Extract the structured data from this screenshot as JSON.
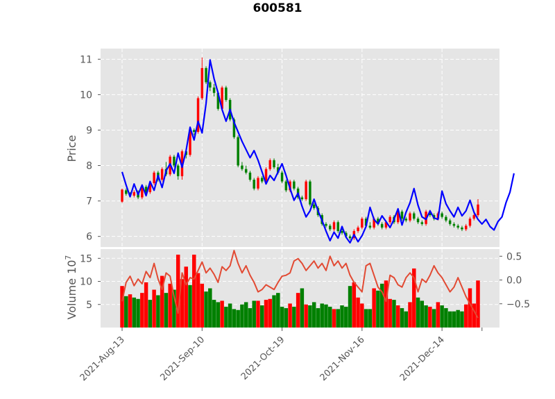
{
  "chart_data": [
    {
      "type": "candlestick",
      "title": "600581",
      "ylabel": "Price",
      "ylim": [
        5.7,
        11.3
      ],
      "yticks": [
        6,
        7,
        8,
        9,
        10,
        11
      ],
      "ytick_labels": [
        "6",
        "7",
        "8",
        "9",
        "10",
        "11"
      ],
      "grid": true,
      "x_dates": [
        "2021-Aug-13",
        "2021-Sep-10",
        "2021-Oct-19",
        "2021-Nov-16",
        "2021-Dec-14"
      ],
      "x_date_index": [
        0,
        20,
        40,
        60,
        80
      ],
      "up_color": "#ff0000",
      "down_color": "#008000",
      "ohlc": [
        [
          6.98,
          7.35,
          6.95,
          7.32
        ],
        [
          7.3,
          7.35,
          7.15,
          7.2
        ],
        [
          7.2,
          7.25,
          7.1,
          7.15
        ],
        [
          7.15,
          7.3,
          7.1,
          7.25
        ],
        [
          7.25,
          7.3,
          7.05,
          7.1
        ],
        [
          7.1,
          7.45,
          7.05,
          7.4
        ],
        [
          7.4,
          7.45,
          7.2,
          7.25
        ],
        [
          7.25,
          7.55,
          7.2,
          7.5
        ],
        [
          7.5,
          7.85,
          7.45,
          7.8
        ],
        [
          7.8,
          7.85,
          7.55,
          7.6
        ],
        [
          7.6,
          7.95,
          7.55,
          7.9
        ],
        [
          7.9,
          8.1,
          7.7,
          7.75
        ],
        [
          7.75,
          8.3,
          7.7,
          8.25
        ],
        [
          8.25,
          8.3,
          7.95,
          8.0
        ],
        [
          8.0,
          8.05,
          7.6,
          7.7
        ],
        [
          7.7,
          8.45,
          7.6,
          8.4
        ],
        [
          8.4,
          8.45,
          8.2,
          8.3
        ],
        [
          8.3,
          9.1,
          8.25,
          9.0
        ],
        [
          9.0,
          9.05,
          8.85,
          8.95
        ],
        [
          8.95,
          9.95,
          8.9,
          9.9
        ],
        [
          9.9,
          11.05,
          9.85,
          10.75
        ],
        [
          10.75,
          10.8,
          10.3,
          10.35
        ],
        [
          10.35,
          10.4,
          10.1,
          10.2
        ],
        [
          10.2,
          10.3,
          9.95,
          10.05
        ],
        [
          10.05,
          10.1,
          9.55,
          9.6
        ],
        [
          9.6,
          10.25,
          9.55,
          10.2
        ],
        [
          10.2,
          10.25,
          9.8,
          9.85
        ],
        [
          9.85,
          9.9,
          9.25,
          9.3
        ],
        [
          9.3,
          9.35,
          8.75,
          8.8
        ],
        [
          8.8,
          8.85,
          7.95,
          8.0
        ],
        [
          8.0,
          8.1,
          7.85,
          7.9
        ],
        [
          7.9,
          8.0,
          7.75,
          7.8
        ],
        [
          7.8,
          7.85,
          7.55,
          7.6
        ],
        [
          7.6,
          7.65,
          7.3,
          7.35
        ],
        [
          7.35,
          7.7,
          7.3,
          7.65
        ],
        [
          7.65,
          7.7,
          7.5,
          7.55
        ],
        [
          7.55,
          7.95,
          7.5,
          7.9
        ],
        [
          7.9,
          8.2,
          7.85,
          8.15
        ],
        [
          8.15,
          8.2,
          7.9,
          7.95
        ],
        [
          7.95,
          8.05,
          7.75,
          7.8
        ],
        [
          7.8,
          7.85,
          7.5,
          7.55
        ],
        [
          7.55,
          7.6,
          7.25,
          7.3
        ],
        [
          7.3,
          7.6,
          7.25,
          7.55
        ],
        [
          7.55,
          7.6,
          7.3,
          7.35
        ],
        [
          7.35,
          7.4,
          7.05,
          7.1
        ],
        [
          7.1,
          7.15,
          7.0,
          7.05
        ],
        [
          7.05,
          7.6,
          7.0,
          7.55
        ],
        [
          7.55,
          7.6,
          6.85,
          6.9
        ],
        [
          6.9,
          6.95,
          6.75,
          6.8
        ],
        [
          6.8,
          6.85,
          6.55,
          6.6
        ],
        [
          6.6,
          6.65,
          6.3,
          6.35
        ],
        [
          6.35,
          6.4,
          6.25,
          6.3
        ],
        [
          6.3,
          6.35,
          6.15,
          6.2
        ],
        [
          6.2,
          6.45,
          6.15,
          6.4
        ],
        [
          6.4,
          6.45,
          6.1,
          6.15
        ],
        [
          6.15,
          6.25,
          6.05,
          6.1
        ],
        [
          6.1,
          6.15,
          5.95,
          6.0
        ],
        [
          6.0,
          6.05,
          5.9,
          5.95
        ],
        [
          5.95,
          6.2,
          5.9,
          6.15
        ],
        [
          6.15,
          6.3,
          6.1,
          6.25
        ],
        [
          6.25,
          6.55,
          6.2,
          6.5
        ],
        [
          6.5,
          6.55,
          6.25,
          6.3
        ],
        [
          6.3,
          6.4,
          6.2,
          6.25
        ],
        [
          6.25,
          6.55,
          6.2,
          6.5
        ],
        [
          6.5,
          6.55,
          6.3,
          6.35
        ],
        [
          6.35,
          6.4,
          6.2,
          6.25
        ],
        [
          6.25,
          6.45,
          6.2,
          6.4
        ],
        [
          6.4,
          6.6,
          6.35,
          6.55
        ],
        [
          6.55,
          6.6,
          6.35,
          6.4
        ],
        [
          6.4,
          6.75,
          6.35,
          6.7
        ],
        [
          6.7,
          6.75,
          6.45,
          6.5
        ],
        [
          6.5,
          6.55,
          6.4,
          6.45
        ],
        [
          6.45,
          6.7,
          6.4,
          6.65
        ],
        [
          6.65,
          6.7,
          6.45,
          6.5
        ],
        [
          6.5,
          6.55,
          6.35,
          6.4
        ],
        [
          6.4,
          6.45,
          6.3,
          6.35
        ],
        [
          6.35,
          6.75,
          6.3,
          6.7
        ],
        [
          6.7,
          6.75,
          6.55,
          6.6
        ],
        [
          6.6,
          6.65,
          6.45,
          6.5
        ],
        [
          6.5,
          6.7,
          6.45,
          6.65
        ],
        [
          6.65,
          6.7,
          6.5,
          6.55
        ],
        [
          6.55,
          6.6,
          6.4,
          6.45
        ],
        [
          6.45,
          6.5,
          6.3,
          6.35
        ],
        [
          6.35,
          6.4,
          6.25,
          6.3
        ],
        [
          6.3,
          6.35,
          6.2,
          6.25
        ],
        [
          6.25,
          6.3,
          6.15,
          6.2
        ],
        [
          6.2,
          6.35,
          6.15,
          6.3
        ],
        [
          6.3,
          6.55,
          6.25,
          6.5
        ],
        [
          6.5,
          6.65,
          6.45,
          6.6
        ],
        [
          6.6,
          7.05,
          6.55,
          6.9
        ]
      ],
      "overlay_series": [
        {
          "color": "#0000ff",
          "values": [
            7.82,
            7.45,
            7.12,
            7.48,
            7.18,
            7.45,
            7.15,
            7.55,
            7.3,
            7.72,
            7.38,
            7.85,
            8.05,
            7.78,
            8.35,
            7.95,
            8.42,
            9.08,
            8.72,
            9.25,
            8.92,
            9.75,
            10.98,
            10.45,
            10.05,
            9.58,
            9.25,
            9.58,
            9.22,
            8.95,
            8.68,
            8.45,
            8.22,
            8.42,
            8.15,
            7.82,
            7.48,
            7.72,
            7.58,
            7.82,
            8.05,
            7.72,
            7.35,
            7.02,
            7.22,
            6.85,
            6.55,
            6.72,
            7.05,
            6.72,
            6.45,
            6.15,
            5.88,
            6.12,
            5.95,
            6.28,
            5.98,
            5.82,
            6.05,
            5.85,
            6.02,
            6.28,
            6.82,
            6.48,
            6.35,
            6.58,
            6.42,
            6.25,
            6.48,
            6.78,
            6.32,
            6.68,
            6.95,
            7.35,
            6.88,
            6.55,
            6.48,
            6.72,
            6.52,
            6.48,
            7.28,
            6.92,
            6.72,
            6.55,
            6.82,
            6.58,
            6.72,
            7.02,
            6.68,
            6.48,
            6.35,
            6.48,
            6.28,
            6.18,
            6.42,
            6.55,
            6.95,
            7.25,
            7.78
          ]
        }
      ]
    },
    {
      "type": "bar",
      "ylabel": "Volume",
      "yscale_label": "10",
      "yscale_exp": "7",
      "ylim": [
        0,
        17
      ],
      "yticks": [
        5,
        10,
        15
      ],
      "ytick_labels": [
        "5",
        "10",
        "15"
      ],
      "right_ylim": [
        -1.0,
        0.65
      ],
      "right_yticks": [
        0.5,
        0.0,
        -0.5
      ],
      "right_ytick_labels": [
        "0.5",
        "0.0",
        "−0.5"
      ],
      "grid": true,
      "volume": [
        9.0,
        6.8,
        7.2,
        6.5,
        6.2,
        7.5,
        9.8,
        6.0,
        8.2,
        7.0,
        11.2,
        7.5,
        9.5,
        8.2,
        15.8,
        10.5,
        13.2,
        9.2,
        15.8,
        11.8,
        9.5,
        7.8,
        8.5,
        6.0,
        5.5,
        5.8,
        4.5,
        5.2,
        4.0,
        3.8,
        5.0,
        5.5,
        4.2,
        5.8,
        5.8,
        4.8,
        6.0,
        6.2,
        7.0,
        7.5,
        4.5,
        4.2,
        5.2,
        4.5,
        7.5,
        8.5,
        5.0,
        4.8,
        5.5,
        4.2,
        5.2,
        5.0,
        4.5,
        4.0,
        4.0,
        4.8,
        4.5,
        9.0,
        9.8,
        6.5,
        5.2,
        4.0,
        4.0,
        8.5,
        8.0,
        9.5,
        10.2,
        6.2,
        6.0,
        4.8,
        4.2,
        3.5,
        5.5,
        12.8,
        6.5,
        5.8,
        4.8,
        4.5,
        4.0,
        5.5,
        4.8,
        4.2,
        3.5,
        3.5,
        3.8,
        3.5,
        5.0,
        8.5,
        5.2,
        10.2
      ],
      "volume_up": [
        1,
        0,
        1,
        0,
        0,
        1,
        1,
        0,
        1,
        0,
        1,
        0,
        1,
        0,
        1,
        1,
        1,
        0,
        1,
        1,
        1,
        0,
        0,
        0,
        0,
        1,
        0,
        0,
        0,
        0,
        0,
        0,
        0,
        0,
        1,
        0,
        1,
        1,
        0,
        0,
        0,
        0,
        1,
        0,
        1,
        0,
        1,
        0,
        0,
        0,
        0,
        0,
        0,
        1,
        0,
        0,
        0,
        0,
        1,
        1,
        1,
        0,
        0,
        1,
        0,
        0,
        1,
        1,
        0,
        1,
        0,
        0,
        1,
        1,
        0,
        0,
        0,
        1,
        0,
        1,
        0,
        0,
        0,
        0,
        0,
        0,
        1,
        1,
        1,
        1
      ],
      "overlay_series": [
        {
          "color": "#e24a33",
          "values": [
            -0.45,
            -0.05,
            0.08,
            -0.12,
            0.02,
            -0.08,
            0.18,
            0.05,
            0.35,
            0.02,
            -0.2,
            0.15,
            0.08,
            -0.35,
            -0.7,
            0.15,
            -0.1,
            0.05,
            0.02,
            0.2,
            0.38,
            0.15,
            0.25,
            0.12,
            -0.05,
            0.28,
            0.2,
            0.3,
            0.62,
            0.35,
            0.15,
            0.3,
            0.1,
            -0.05,
            -0.25,
            -0.2,
            -0.1,
            -0.15,
            -0.2,
            -0.05,
            0.08,
            0.1,
            0.15,
            0.4,
            0.45,
            0.35,
            0.2,
            0.3,
            0.4,
            0.25,
            0.35,
            0.2,
            0.5,
            0.3,
            0.4,
            0.25,
            0.35,
            0.1,
            -0.05,
            -0.15,
            -0.25,
            0.3,
            0.35,
            0.1,
            -0.15,
            -0.25,
            -0.45,
            0.1,
            0.05,
            -0.1,
            -0.15,
            0.05,
            0.15,
            0.05,
            -0.25,
            0.02,
            -0.05,
            0.1,
            0.3,
            0.15,
            0.05,
            -0.1,
            -0.25,
            -0.15,
            0.05,
            -0.15,
            -0.35,
            -0.5,
            -0.65,
            -0.8
          ]
        }
      ]
    }
  ]
}
